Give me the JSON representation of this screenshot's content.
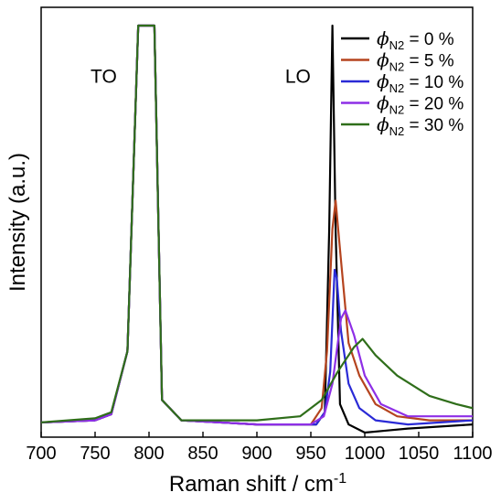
{
  "chart_data": {
    "type": "line",
    "xlabel": "Raman shift / cm",
    "xlabel_sup": "-1",
    "ylabel": "Intensity (a.u.)",
    "xlim": [
      700,
      1100
    ],
    "ylim": [
      0,
      1
    ],
    "xticks": [
      700,
      750,
      800,
      850,
      900,
      950,
      1000,
      1050,
      1100
    ],
    "yticks_shown": false,
    "legend_position": "top-right",
    "annotations": [
      {
        "text": "TO",
        "x": 758,
        "y": 0.86
      },
      {
        "text": "LO",
        "x": 938,
        "y": 0.86
      }
    ],
    "series": [
      {
        "symbol": "ϕ",
        "subscript": "N2",
        "name_suffix": " = 0 %",
        "color": "#000000",
        "points": [
          [
            700,
            0.025
          ],
          [
            750,
            0.03
          ],
          [
            765,
            0.045
          ],
          [
            780,
            0.2
          ],
          [
            790,
            1.0
          ],
          [
            805,
            1.0
          ],
          [
            812,
            0.08
          ],
          [
            830,
            0.03
          ],
          [
            900,
            0.02
          ],
          [
            955,
            0.02
          ],
          [
            963,
            0.05
          ],
          [
            967,
            0.5
          ],
          [
            970,
            1.0
          ],
          [
            973,
            0.5
          ],
          [
            977,
            0.07
          ],
          [
            985,
            0.02
          ],
          [
            1000,
            0.0
          ],
          [
            1020,
            0.005
          ],
          [
            1040,
            0.01
          ],
          [
            1100,
            0.02
          ]
        ]
      },
      {
        "symbol": "ϕ",
        "subscript": "N2",
        "name_suffix": " = 5 %",
        "color": "#b5441f",
        "points": [
          [
            700,
            0.025
          ],
          [
            750,
            0.03
          ],
          [
            765,
            0.045
          ],
          [
            780,
            0.2
          ],
          [
            790,
            1.0
          ],
          [
            805,
            1.0
          ],
          [
            812,
            0.08
          ],
          [
            830,
            0.03
          ],
          [
            900,
            0.02
          ],
          [
            950,
            0.02
          ],
          [
            960,
            0.06
          ],
          [
            965,
            0.2
          ],
          [
            970,
            0.5
          ],
          [
            973,
            0.57
          ],
          [
            977,
            0.45
          ],
          [
            985,
            0.22
          ],
          [
            995,
            0.14
          ],
          [
            1010,
            0.07
          ],
          [
            1030,
            0.04
          ],
          [
            1060,
            0.03
          ],
          [
            1100,
            0.03
          ]
        ]
      },
      {
        "symbol": "ϕ",
        "subscript": "N2",
        "name_suffix": " = 10 %",
        "color": "#2a2ad6",
        "points": [
          [
            700,
            0.025
          ],
          [
            750,
            0.03
          ],
          [
            765,
            0.045
          ],
          [
            780,
            0.2
          ],
          [
            790,
            1.0
          ],
          [
            805,
            1.0
          ],
          [
            812,
            0.08
          ],
          [
            830,
            0.03
          ],
          [
            900,
            0.02
          ],
          [
            955,
            0.02
          ],
          [
            963,
            0.05
          ],
          [
            968,
            0.15
          ],
          [
            972,
            0.4
          ],
          [
            974,
            0.38
          ],
          [
            978,
            0.25
          ],
          [
            985,
            0.12
          ],
          [
            995,
            0.06
          ],
          [
            1010,
            0.03
          ],
          [
            1040,
            0.02
          ],
          [
            1100,
            0.03
          ]
        ]
      },
      {
        "symbol": "ϕ",
        "subscript": "N2",
        "name_suffix": " = 20 %",
        "color": "#8e2fe6",
        "points": [
          [
            700,
            0.025
          ],
          [
            750,
            0.03
          ],
          [
            765,
            0.045
          ],
          [
            780,
            0.2
          ],
          [
            790,
            1.0
          ],
          [
            805,
            1.0
          ],
          [
            812,
            0.08
          ],
          [
            830,
            0.03
          ],
          [
            900,
            0.02
          ],
          [
            950,
            0.02
          ],
          [
            962,
            0.04
          ],
          [
            970,
            0.12
          ],
          [
            978,
            0.28
          ],
          [
            982,
            0.3
          ],
          [
            990,
            0.24
          ],
          [
            1000,
            0.14
          ],
          [
            1015,
            0.07
          ],
          [
            1040,
            0.04
          ],
          [
            1100,
            0.04
          ]
        ]
      },
      {
        "symbol": "ϕ",
        "subscript": "N2",
        "name_suffix": " = 30 %",
        "color": "#2f6e1a",
        "points": [
          [
            700,
            0.025
          ],
          [
            750,
            0.035
          ],
          [
            765,
            0.05
          ],
          [
            780,
            0.2
          ],
          [
            790,
            1.0
          ],
          [
            805,
            1.0
          ],
          [
            812,
            0.08
          ],
          [
            830,
            0.03
          ],
          [
            900,
            0.03
          ],
          [
            940,
            0.04
          ],
          [
            960,
            0.08
          ],
          [
            975,
            0.15
          ],
          [
            990,
            0.21
          ],
          [
            998,
            0.23
          ],
          [
            1010,
            0.19
          ],
          [
            1030,
            0.14
          ],
          [
            1060,
            0.09
          ],
          [
            1085,
            0.07
          ],
          [
            1100,
            0.06
          ]
        ]
      }
    ]
  }
}
